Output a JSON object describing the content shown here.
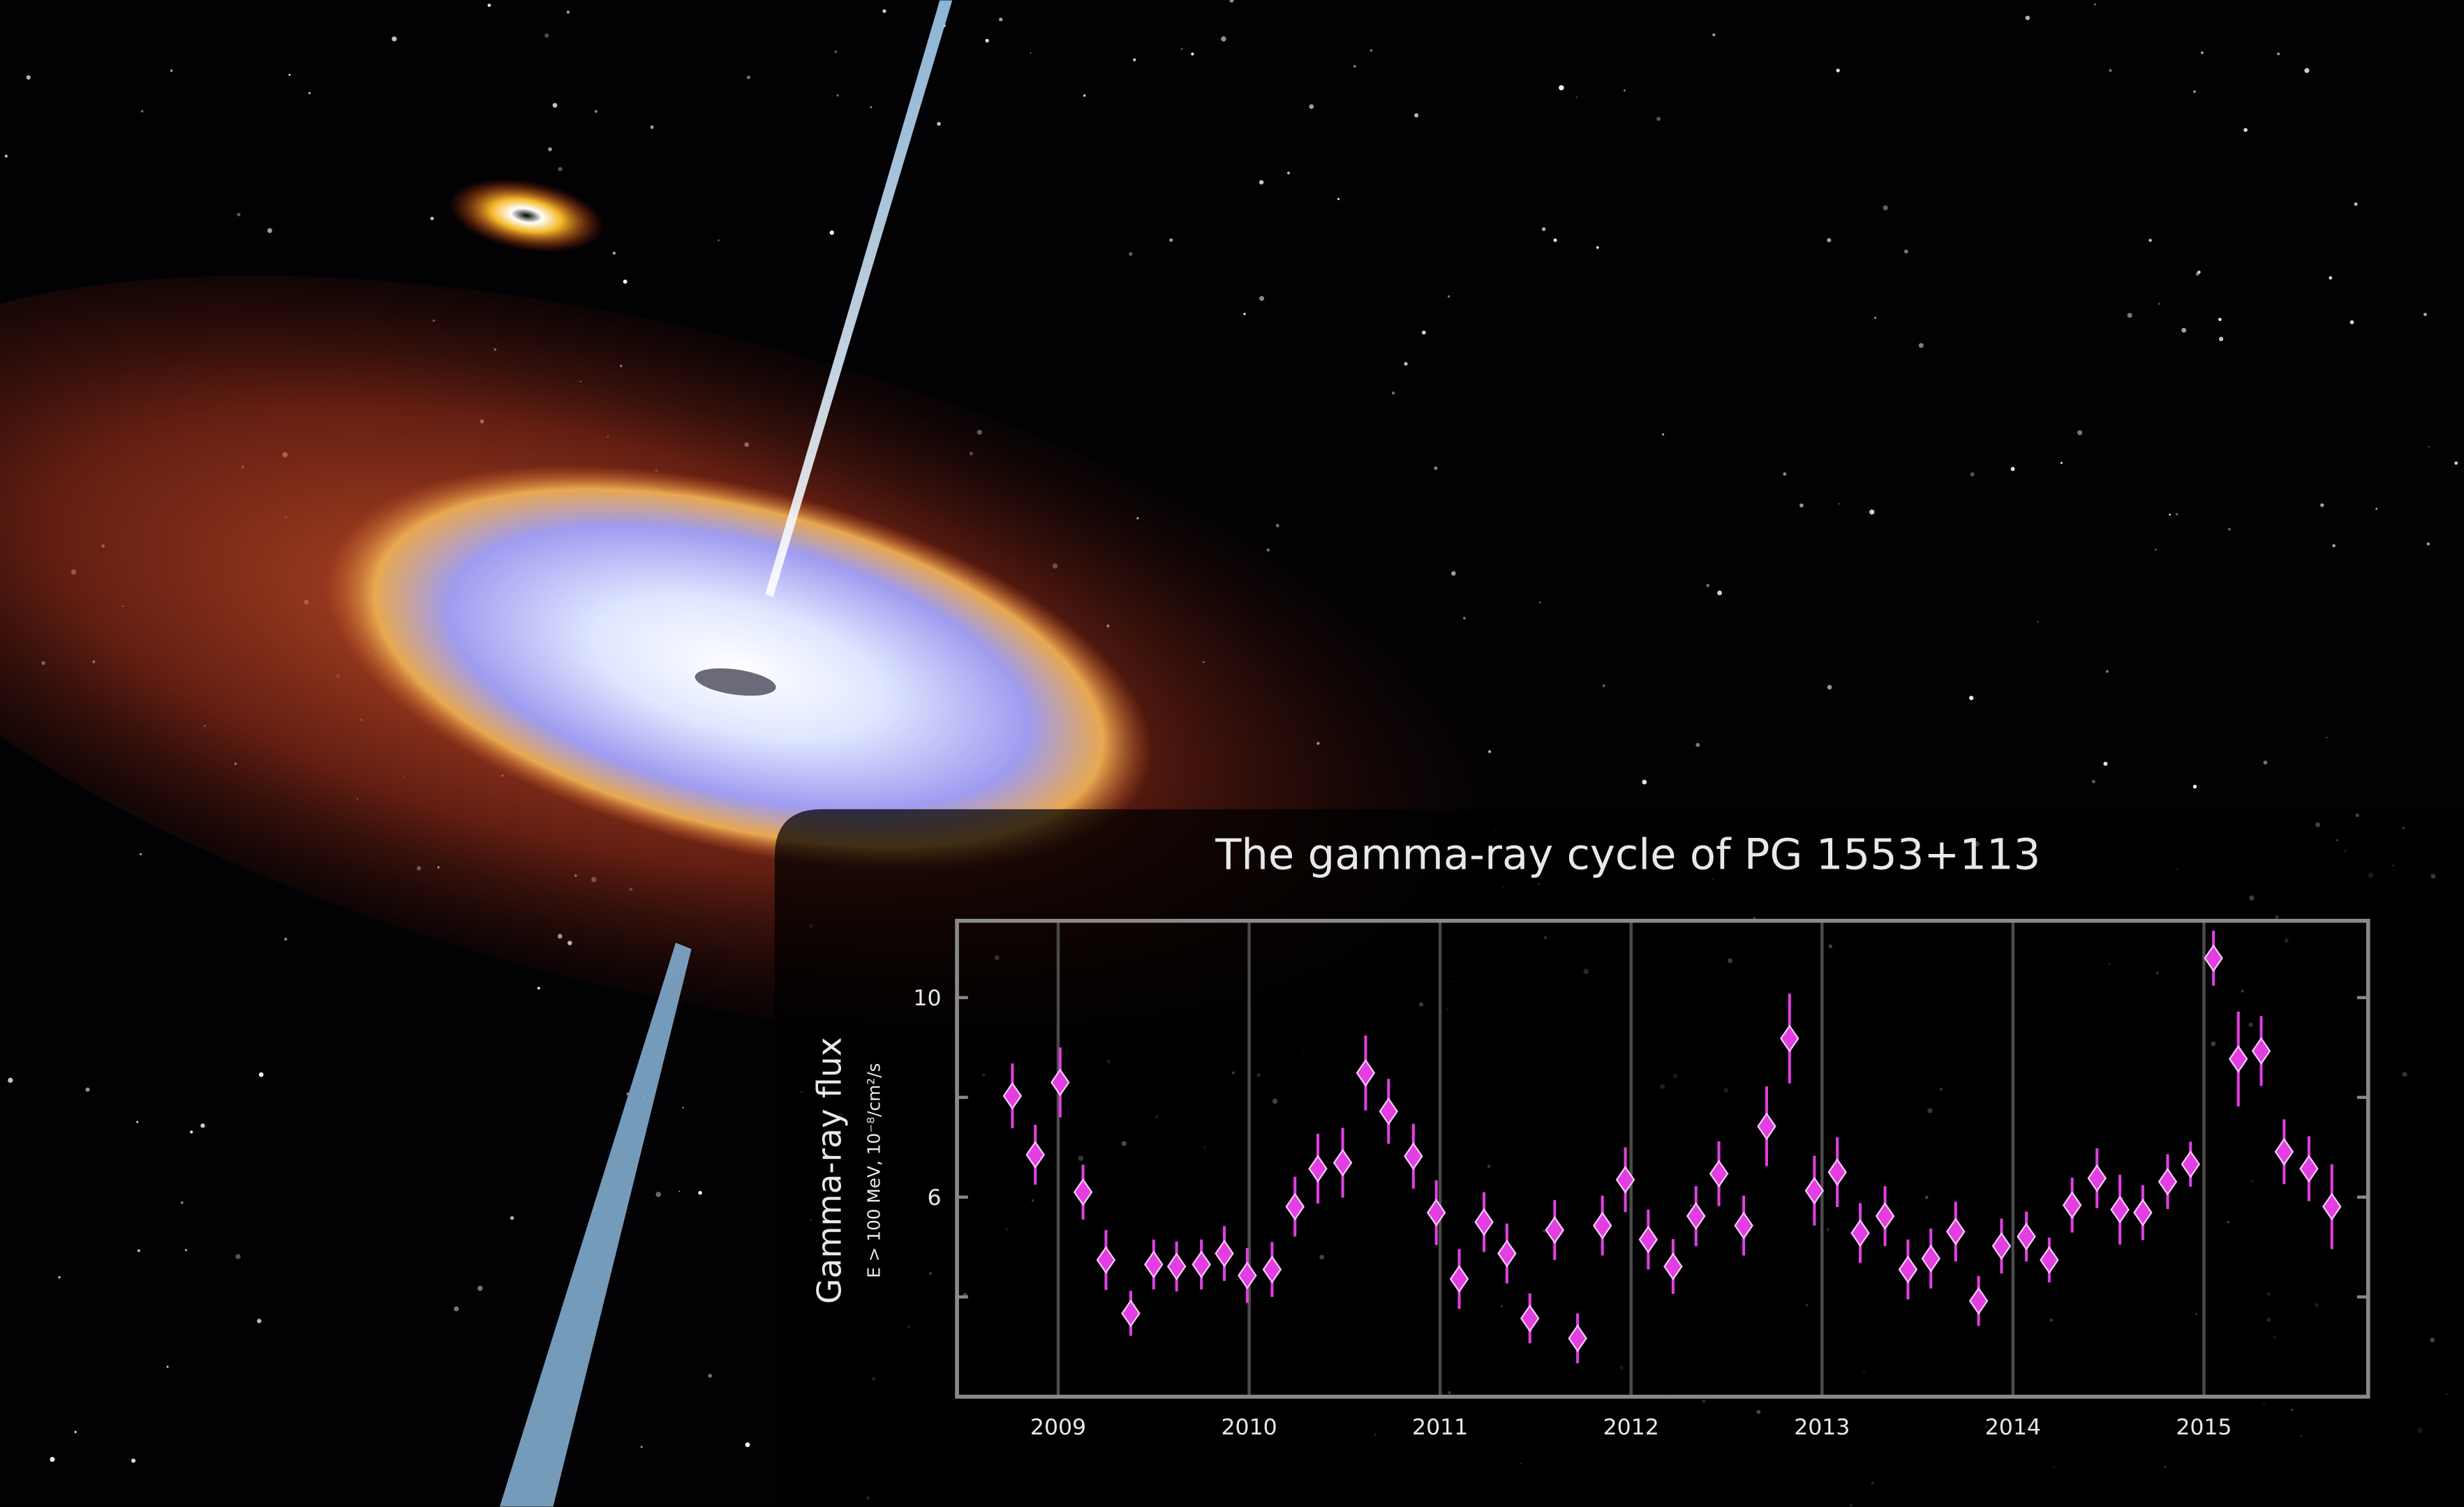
{
  "chart_data": {
    "type": "scatter",
    "title": "The gamma-ray cycle of PG 1553+113",
    "ylabel": "Gamma-ray flux",
    "ysublabel": "E > 100 MeV, 10⁻⁸/cm²/s",
    "x": [
      2008.76,
      2008.88,
      2009.01,
      2009.13,
      2009.25,
      2009.38,
      2009.5,
      2009.62,
      2009.75,
      2009.87,
      2009.99,
      2010.12,
      2010.24,
      2010.36,
      2010.49,
      2010.61,
      2010.73,
      2010.86,
      2010.98,
      2011.1,
      2011.23,
      2011.35,
      2011.47,
      2011.6,
      2011.72,
      2011.85,
      2011.97,
      2012.09,
      2012.22,
      2012.34,
      2012.46,
      2012.59,
      2012.71,
      2012.83,
      2012.96,
      2013.08,
      2013.2,
      2013.33,
      2013.45,
      2013.57,
      2013.7,
      2013.82,
      2013.94,
      2014.07,
      2014.19,
      2014.31,
      2014.44,
      2014.56,
      2014.68,
      2014.81,
      2014.93,
      2015.05,
      2015.18,
      2015.3,
      2015.42,
      2015.55,
      2015.67
    ],
    "values": [
      8.03,
      6.85,
      8.3,
      6.1,
      4.74,
      3.67,
      4.65,
      4.61,
      4.65,
      4.87,
      4.43,
      4.55,
      5.81,
      6.57,
      6.69,
      8.49,
      7.72,
      6.82,
      5.69,
      4.36,
      5.5,
      4.87,
      3.57,
      5.34,
      3.17,
      5.43,
      6.35,
      5.15,
      4.61,
      5.62,
      6.47,
      5.43,
      7.42,
      9.18,
      6.13,
      6.5,
      5.28,
      5.62,
      4.55,
      4.77,
      5.31,
      3.92,
      5.02,
      5.21,
      4.74,
      5.84,
      6.38,
      5.75,
      5.69,
      6.31,
      6.66,
      10.79,
      8.77,
      8.93,
      6.91,
      6.57,
      5.81
    ],
    "errors": [
      0.65,
      0.6,
      0.7,
      0.55,
      0.6,
      0.45,
      0.5,
      0.5,
      0.5,
      0.55,
      0.55,
      0.55,
      0.6,
      0.7,
      0.7,
      0.75,
      0.65,
      0.65,
      0.65,
      0.6,
      0.6,
      0.6,
      0.5,
      0.6,
      0.5,
      0.6,
      0.65,
      0.6,
      0.55,
      0.6,
      0.65,
      0.6,
      0.8,
      0.9,
      0.7,
      0.7,
      0.6,
      0.6,
      0.6,
      0.6,
      0.6,
      0.5,
      0.55,
      0.5,
      0.45,
      0.55,
      0.6,
      0.7,
      0.55,
      0.55,
      0.45,
      0.55,
      0.95,
      0.7,
      0.65,
      0.65,
      0.85
    ],
    "color": "#e23ee2",
    "xlim": [
      2008.47,
      2015.86
    ],
    "xticks": [
      2009,
      2010,
      2011,
      2012,
      2013,
      2014,
      2015
    ],
    "ylim": [
      2,
      11.54
    ],
    "yticks": [
      6,
      10
    ],
    "yminor": [
      4,
      8
    ],
    "grid": true
  }
}
